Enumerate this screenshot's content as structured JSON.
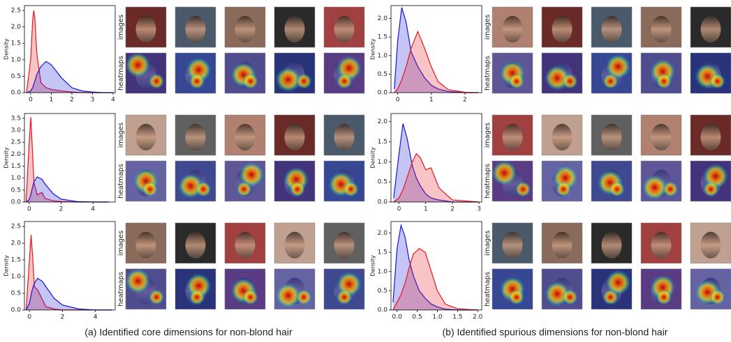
{
  "chart_data": [
    {
      "type": "area",
      "y_label": "Density",
      "xlim": [
        -0.3,
        4.1
      ],
      "ylim": [
        0,
        2.65
      ],
      "xticks": [
        0,
        1,
        2,
        3,
        4
      ],
      "yticks": [
        {
          "value": 0,
          "label": "0.0"
        },
        {
          "value": 0.5,
          "label": "0.5"
        },
        {
          "value": 1,
          "label": "1.0"
        },
        {
          "value": 1.5,
          "label": "1.5"
        },
        {
          "value": 2,
          "label": "2.0"
        },
        {
          "value": 2.5,
          "label": "2.5"
        }
      ],
      "x": [
        -0.2,
        0,
        0.1,
        0.15,
        0.2,
        0.3,
        0.5,
        0.75,
        1,
        1.5,
        2,
        2.5,
        3,
        3.5,
        4
      ],
      "series": [
        {
          "color": "#e8141c",
          "values": [
            0,
            1.0,
            2.2,
            2.5,
            2.3,
            1.2,
            0.3,
            0.15,
            0.1,
            0.05,
            0.02,
            0,
            0,
            0,
            0
          ]
        },
        {
          "color": "#1414d8",
          "values": [
            0,
            0.05,
            0.15,
            0.25,
            0.35,
            0.55,
            0.8,
            0.95,
            0.85,
            0.45,
            0.15,
            0.05,
            0.02,
            0,
            0
          ]
        }
      ]
    },
    {
      "type": "area",
      "y_label": "Density",
      "xlim": [
        -0.3,
        5.4
      ],
      "ylim": [
        0,
        3.7
      ],
      "xticks": [
        0,
        2,
        4
      ],
      "yticks": [
        {
          "value": 0,
          "label": "0.0"
        },
        {
          "value": 0.5,
          "label": "0.5"
        },
        {
          "value": 1,
          "label": "1.0"
        },
        {
          "value": 1.5,
          "label": "1.5"
        },
        {
          "value": 2,
          "label": "2.0"
        },
        {
          "value": 2.5,
          "label": "2.5"
        },
        {
          "value": 3,
          "label": "3.0"
        },
        {
          "value": 3.5,
          "label": "3.5"
        }
      ],
      "x": [
        -0.2,
        0,
        0.1,
        0.2,
        0.3,
        0.5,
        0.8,
        1,
        1.5,
        2,
        3,
        4,
        5
      ],
      "series": [
        {
          "color": "#e8141c",
          "values": [
            0,
            2.5,
            3.55,
            2.2,
            0.8,
            0.3,
            0.4,
            0.15,
            0.05,
            0.02,
            0,
            0,
            0
          ]
        },
        {
          "color": "#1414d8",
          "values": [
            0,
            0.1,
            0.3,
            0.6,
            0.85,
            1.05,
            0.95,
            0.75,
            0.35,
            0.12,
            0.02,
            0,
            0
          ]
        }
      ]
    },
    {
      "type": "area",
      "y_label": "Density",
      "xlim": [
        -0.3,
        5.2
      ],
      "ylim": [
        0,
        2.65
      ],
      "xticks": [
        0,
        2,
        4
      ],
      "yticks": [
        {
          "value": 0,
          "label": "0.0"
        },
        {
          "value": 0.5,
          "label": "0.5"
        },
        {
          "value": 1,
          "label": "1.0"
        },
        {
          "value": 1.5,
          "label": "1.5"
        },
        {
          "value": 2,
          "label": "2.0"
        },
        {
          "value": 2.5,
          "label": "2.5"
        }
      ],
      "x": [
        -0.2,
        0,
        0.1,
        0.2,
        0.3,
        0.5,
        0.8,
        1,
        1.5,
        2,
        3,
        4,
        5
      ],
      "series": [
        {
          "color": "#e8141c",
          "values": [
            0,
            1.5,
            2.25,
            1.6,
            0.7,
            0.6,
            0.3,
            0.1,
            0.03,
            0,
            0,
            0,
            0
          ]
        },
        {
          "color": "#1414d8",
          "values": [
            0,
            0.2,
            0.45,
            0.65,
            0.8,
            0.95,
            0.85,
            0.7,
            0.35,
            0.15,
            0.03,
            0,
            0
          ]
        }
      ]
    },
    {
      "type": "area",
      "y_label": "Density",
      "xlim": [
        -0.2,
        2.5
      ],
      "ylim": [
        0,
        2.35
      ],
      "xticks": [
        0,
        1,
        2
      ],
      "yticks": [
        {
          "value": 0,
          "label": "0.0"
        },
        {
          "value": 0.5,
          "label": "0.5"
        },
        {
          "value": 1,
          "label": "1.0"
        },
        {
          "value": 1.5,
          "label": "1.5"
        },
        {
          "value": 2,
          "label": "2.0"
        }
      ],
      "x": [
        -0.1,
        0,
        0.12,
        0.25,
        0.4,
        0.6,
        0.8,
        1,
        1.2,
        1.5,
        2,
        2.4
      ],
      "series": [
        {
          "color": "#1414d8",
          "values": [
            0.1,
            1.4,
            2.3,
            1.9,
            1.1,
            0.7,
            0.4,
            0.2,
            0.1,
            0.03,
            0,
            0
          ]
        },
        {
          "color": "#e8141c",
          "values": [
            0,
            0.1,
            0.35,
            0.7,
            1.2,
            1.65,
            1.2,
            0.7,
            0.3,
            0.08,
            0.01,
            0
          ]
        }
      ]
    },
    {
      "type": "area",
      "y_label": "Density",
      "xlim": [
        -0.3,
        3.1
      ],
      "ylim": [
        0,
        2.2
      ],
      "xticks": [
        0,
        1,
        2,
        3
      ],
      "yticks": [
        {
          "value": 0,
          "label": "0.0"
        },
        {
          "value": 0.5,
          "label": "0.5"
        },
        {
          "value": 1,
          "label": "1.0"
        },
        {
          "value": 1.5,
          "label": "1.5"
        },
        {
          "value": 2,
          "label": "2.0"
        }
      ],
      "x": [
        -0.2,
        0,
        0.15,
        0.3,
        0.5,
        0.65,
        0.8,
        1,
        1.2,
        1.5,
        2,
        3
      ],
      "series": [
        {
          "color": "#1414d8",
          "values": [
            0.1,
            1.2,
            1.95,
            1.6,
            0.9,
            0.6,
            0.4,
            0.2,
            0.1,
            0.05,
            0,
            0
          ]
        },
        {
          "color": "#e8141c",
          "values": [
            0,
            0.1,
            0.3,
            0.6,
            1.0,
            1.2,
            1.1,
            0.8,
            0.85,
            0.35,
            0.05,
            0
          ]
        }
      ]
    },
    {
      "type": "area",
      "y_label": "Density",
      "xlim": [
        -0.15,
        2.1
      ],
      "ylim": [
        0,
        2.3
      ],
      "xticks": [
        {
          "value": 0,
          "label": "0.0"
        },
        {
          "value": 0.5,
          "label": "0.5"
        },
        {
          "value": 1,
          "label": "1.0"
        },
        {
          "value": 1.5,
          "label": "1.5"
        },
        {
          "value": 2,
          "label": "2.0"
        }
      ],
      "yticks": [
        {
          "value": 0,
          "label": "0.0"
        },
        {
          "value": 0.5,
          "label": "0.5"
        },
        {
          "value": 1,
          "label": "1.0"
        },
        {
          "value": 1.5,
          "label": "1.5"
        },
        {
          "value": 2,
          "label": "2.0"
        }
      ],
      "x": [
        -0.1,
        0,
        0.1,
        0.2,
        0.3,
        0.4,
        0.55,
        0.7,
        0.85,
        1,
        1.2,
        1.5,
        2
      ],
      "series": [
        {
          "color": "#1414d8",
          "values": [
            0.2,
            1.6,
            2.2,
            1.9,
            1.3,
            0.9,
            0.5,
            0.3,
            0.15,
            0.08,
            0.02,
            0,
            0
          ]
        },
        {
          "color": "#e8141c",
          "values": [
            0,
            0.2,
            0.4,
            0.7,
            1.1,
            1.45,
            1.6,
            1.5,
            1.0,
            0.5,
            0.15,
            0.03,
            0
          ]
        }
      ]
    }
  ],
  "row_labels": [
    "images",
    "heatmaps"
  ],
  "captions": [
    "(a) Identified core dimensions for non-blond hair",
    "(b) Identified spurious dimensions for non-blond hair"
  ]
}
